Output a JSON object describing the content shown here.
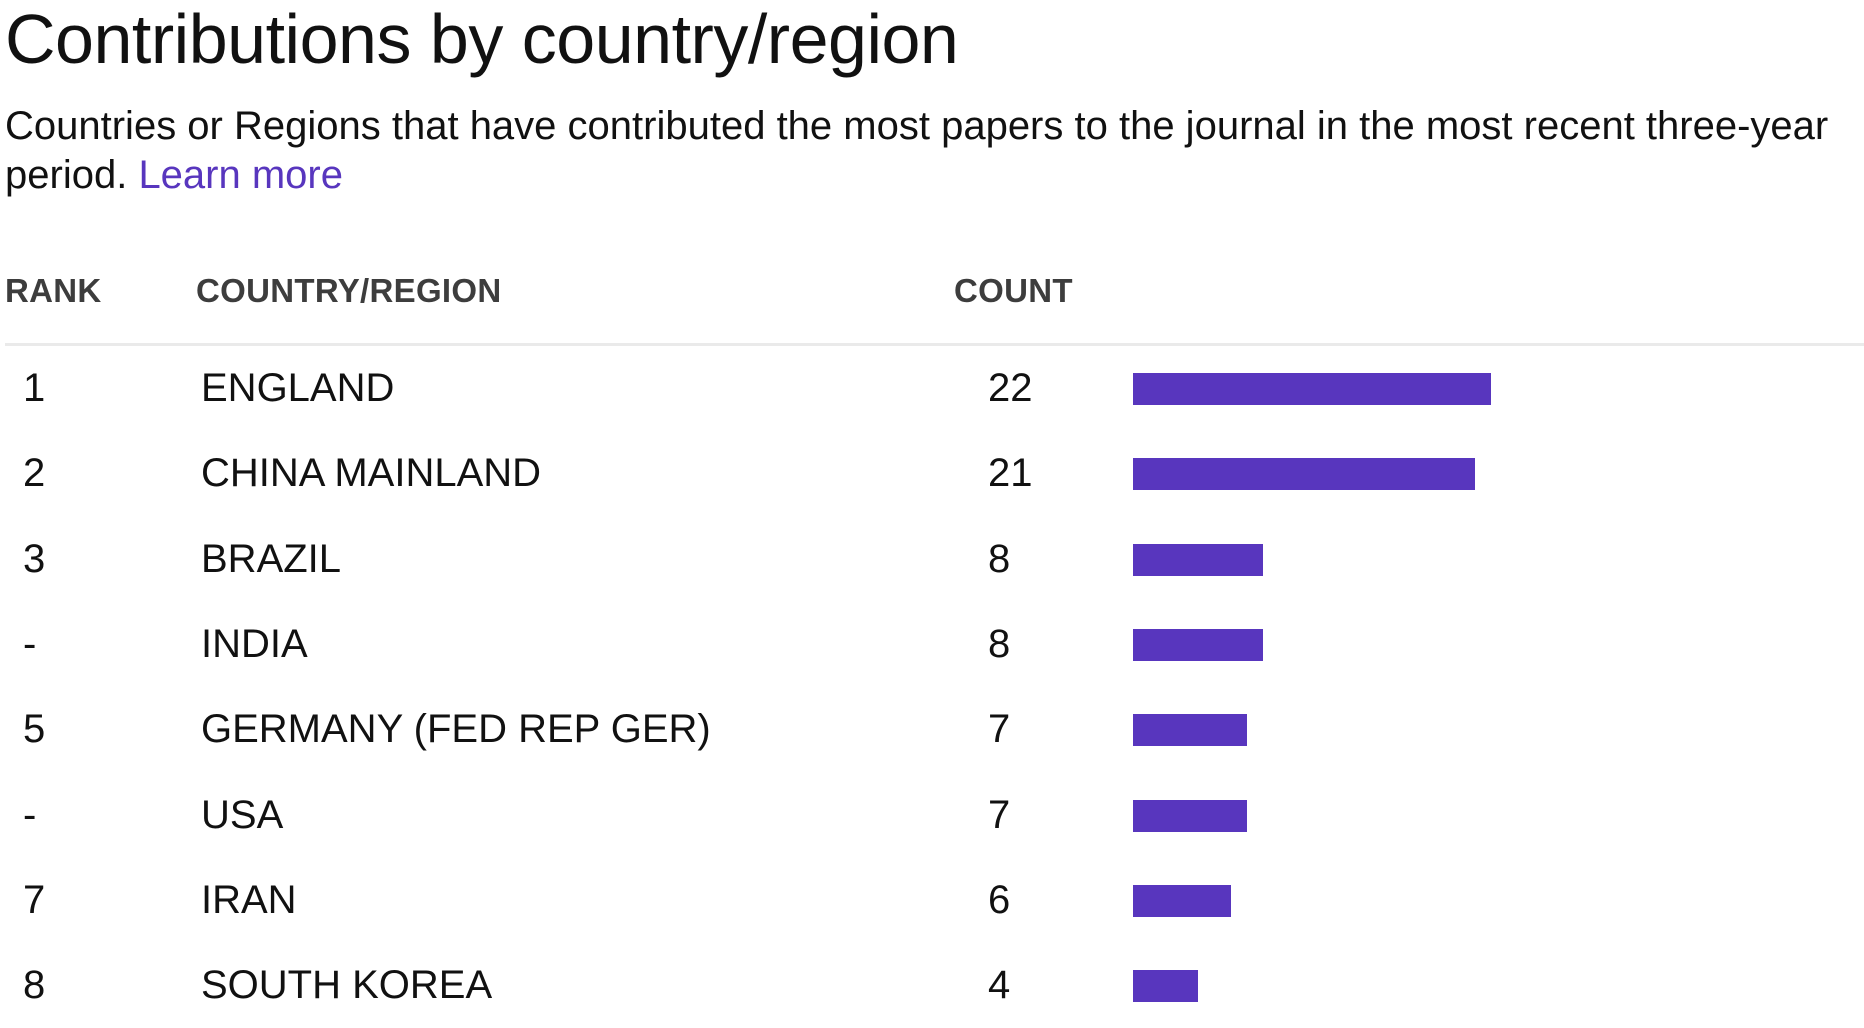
{
  "header": {
    "title": "Contributions by country/region",
    "subtitle": "Countries or Regions that have contributed the most papers to the journal in the most recent three-year period.",
    "learn_more": "Learn more"
  },
  "colors": {
    "bar": "#5836be",
    "link": "#5836be"
  },
  "table": {
    "columns": [
      "RANK",
      "COUNTRY/REGION",
      "COUNT"
    ]
  },
  "chart_data": {
    "type": "bar",
    "orientation": "horizontal",
    "categories": [
      "ENGLAND",
      "CHINA MAINLAND",
      "BRAZIL",
      "INDIA",
      "GERMANY (FED REP GER)",
      "USA",
      "IRAN",
      "SOUTH KOREA"
    ],
    "ranks": [
      "1",
      "2",
      "3",
      "-",
      "5",
      "-",
      "7",
      "8"
    ],
    "values": [
      22,
      21,
      8,
      8,
      7,
      7,
      6,
      4
    ],
    "xlim": [
      0,
      22
    ],
    "grid": false,
    "legend": "none"
  }
}
